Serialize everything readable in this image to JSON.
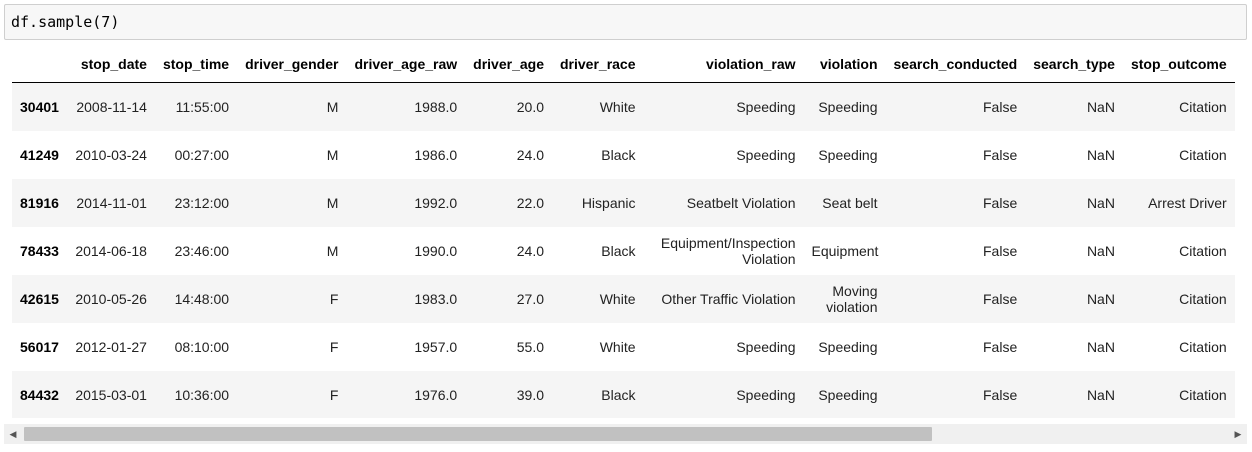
{
  "cell": {
    "code": "df.sample(7)"
  },
  "table": {
    "columns": [
      "stop_date",
      "stop_time",
      "driver_gender",
      "driver_age_raw",
      "driver_age",
      "driver_race",
      "violation_raw",
      "violation",
      "search_conducted",
      "search_type",
      "stop_outcome"
    ],
    "rows": [
      {
        "index": "30401",
        "stop_date": "2008-11-14",
        "stop_time": "11:55:00",
        "driver_gender": "M",
        "driver_age_raw": "1988.0",
        "driver_age": "20.0",
        "driver_race": "White",
        "violation_raw": "Speeding",
        "violation": "Speeding",
        "search_conducted": "False",
        "search_type": "NaN",
        "stop_outcome": "Citation"
      },
      {
        "index": "41249",
        "stop_date": "2010-03-24",
        "stop_time": "00:27:00",
        "driver_gender": "M",
        "driver_age_raw": "1986.0",
        "driver_age": "24.0",
        "driver_race": "Black",
        "violation_raw": "Speeding",
        "violation": "Speeding",
        "search_conducted": "False",
        "search_type": "NaN",
        "stop_outcome": "Citation"
      },
      {
        "index": "81916",
        "stop_date": "2014-11-01",
        "stop_time": "23:12:00",
        "driver_gender": "M",
        "driver_age_raw": "1992.0",
        "driver_age": "22.0",
        "driver_race": "Hispanic",
        "violation_raw": "Seatbelt Violation",
        "violation": "Seat belt",
        "search_conducted": "False",
        "search_type": "NaN",
        "stop_outcome": "Arrest Driver"
      },
      {
        "index": "78433",
        "stop_date": "2014-06-18",
        "stop_time": "23:46:00",
        "driver_gender": "M",
        "driver_age_raw": "1990.0",
        "driver_age": "24.0",
        "driver_race": "Black",
        "violation_raw": "Equipment/Inspection Violation",
        "violation": "Equipment",
        "search_conducted": "False",
        "search_type": "NaN",
        "stop_outcome": "Citation"
      },
      {
        "index": "42615",
        "stop_date": "2010-05-26",
        "stop_time": "14:48:00",
        "driver_gender": "F",
        "driver_age_raw": "1983.0",
        "driver_age": "27.0",
        "driver_race": "White",
        "violation_raw": "Other Traffic Violation",
        "violation": "Moving violation",
        "search_conducted": "False",
        "search_type": "NaN",
        "stop_outcome": "Citation"
      },
      {
        "index": "56017",
        "stop_date": "2012-01-27",
        "stop_time": "08:10:00",
        "driver_gender": "F",
        "driver_age_raw": "1957.0",
        "driver_age": "55.0",
        "driver_race": "White",
        "violation_raw": "Speeding",
        "violation": "Speeding",
        "search_conducted": "False",
        "search_type": "NaN",
        "stop_outcome": "Citation"
      },
      {
        "index": "84432",
        "stop_date": "2015-03-01",
        "stop_time": "10:36:00",
        "driver_gender": "F",
        "driver_age_raw": "1976.0",
        "driver_age": "39.0",
        "driver_race": "Black",
        "violation_raw": "Speeding",
        "violation": "Speeding",
        "search_conducted": "False",
        "search_type": "NaN",
        "stop_outcome": "Citation"
      }
    ]
  },
  "scrollbar": {
    "left_icon": "triangle-left-icon",
    "right_icon": "triangle-right-icon"
  }
}
